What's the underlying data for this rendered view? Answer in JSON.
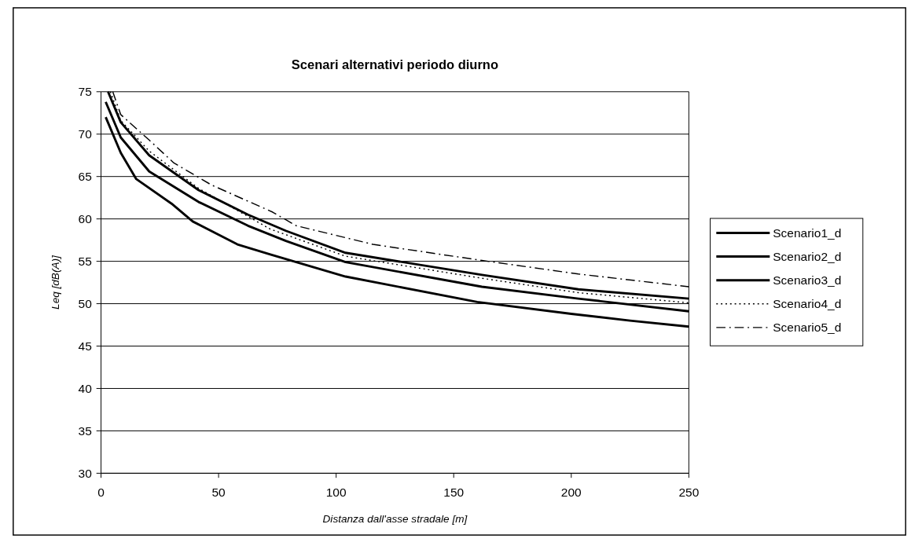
{
  "chart_data": {
    "type": "line",
    "title": "Scenari alternativi periodo diurno",
    "xlabel": "Distanza dall'asse stradale [m]",
    "ylabel": "Leq [dB(A)]",
    "xlim": [
      0,
      250
    ],
    "xticks": [
      0,
      50,
      100,
      150,
      200,
      250
    ],
    "ylim": [
      30,
      75
    ],
    "yticks": [
      30,
      35,
      40,
      45,
      50,
      55,
      60,
      65,
      70,
      75
    ],
    "grid": "y",
    "legend": "right",
    "marker": "none",
    "series": [
      {
        "name": "Scenario1_d",
        "color": "#000000",
        "line_style": "solid",
        "x": [
          3,
          8.4,
          20.5,
          41.5,
          62.5,
          78.6,
          104,
          162,
          203,
          250
        ],
        "values": [
          75,
          71.4,
          67.5,
          63.4,
          60.5,
          58.6,
          56,
          53.4,
          51.7,
          50.6
        ]
      },
      {
        "name": "Scenario2_d",
        "color": "#000000",
        "line_style": "solid",
        "x": [
          2,
          8.4,
          20.5,
          41.5,
          62.5,
          78.6,
          104,
          162,
          203,
          250
        ],
        "values": [
          73.8,
          69.6,
          65.6,
          62,
          59.2,
          57.4,
          54.9,
          52,
          50.6,
          49.1
        ]
      },
      {
        "name": "Scenario3_d",
        "color": "#000000",
        "line_style": "solid",
        "x": [
          2,
          8.4,
          15,
          30,
          39,
          58,
          72,
          104,
          160,
          200,
          225,
          250
        ],
        "values": [
          72,
          67.8,
          64.7,
          61.8,
          59.7,
          57,
          55.8,
          53.2,
          50.2,
          48.8,
          48,
          47.3
        ]
      },
      {
        "name": "Scenario4_d",
        "color": "#000000",
        "line_style": "dotted",
        "x": [
          4,
          8.4,
          20.5,
          41.5,
          72,
          104,
          162,
          203,
          250
        ],
        "values": [
          75,
          71.6,
          68,
          63.6,
          58.8,
          55.6,
          53,
          51.3,
          50.1
        ]
      },
      {
        "name": "Scenario5_d",
        "color": "#000000",
        "line_style": "dashdot",
        "x": [
          5,
          8.4,
          20.5,
          31,
          47,
          73,
          83,
          115.6,
          162,
          203,
          250
        ],
        "values": [
          75,
          72.3,
          69.3,
          66.6,
          64,
          60.8,
          59.2,
          57,
          55.1,
          53.5,
          52
        ]
      }
    ]
  }
}
